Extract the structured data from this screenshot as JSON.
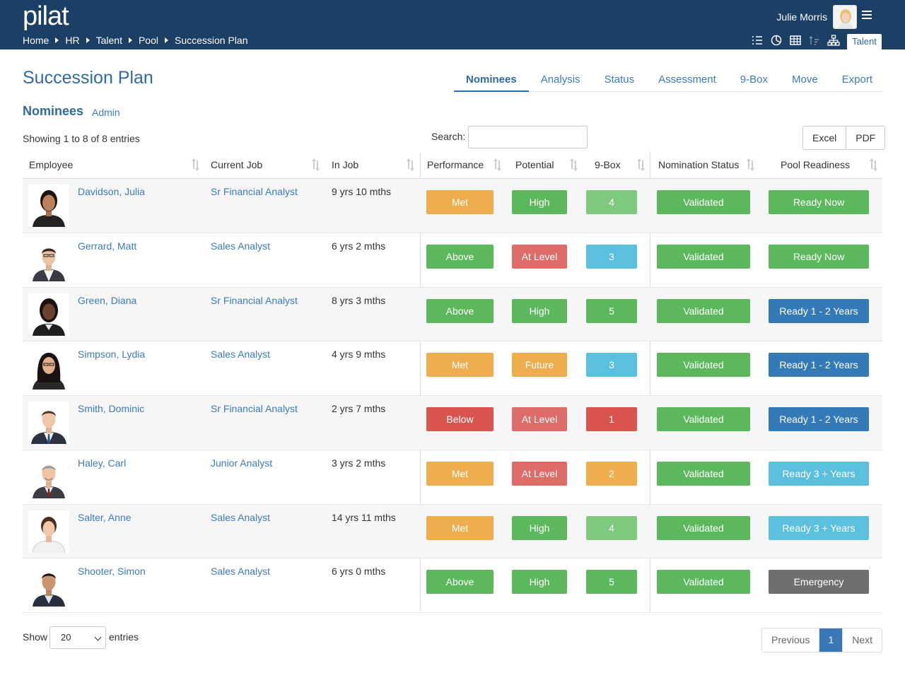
{
  "header": {
    "logo": "pilat",
    "breadcrumb": [
      "Home",
      "HR",
      "Talent",
      "Pool",
      "Succession Plan"
    ],
    "user_name": "Julie Morris",
    "talent_tab": "Talent"
  },
  "page": {
    "title": "Succession Plan",
    "tabs": [
      "Nominees",
      "Analysis",
      "Status",
      "Assessment",
      "9-Box",
      "Move",
      "Export"
    ],
    "active_tab": "Nominees",
    "section_title": "Nominees",
    "section_sub": "Admin",
    "showing": "Showing 1 to 8 of 8 entries",
    "search_label": "Search:",
    "search_value": "",
    "export_excel": "Excel",
    "export_pdf": "PDF"
  },
  "table": {
    "columns": [
      "Employee",
      "Current Job",
      "In Job",
      "Performance",
      "Potential",
      "9-Box",
      "Nomination Status",
      "Pool Readiness"
    ],
    "rows": [
      {
        "name": "Davidson, Julia",
        "job": "Sr Financial Analyst",
        "in_job": "9 yrs 10 mths",
        "performance": "Met",
        "potential": "High",
        "box": "4",
        "nomination": "Validated",
        "pool": "Ready Now"
      },
      {
        "name": "Gerrard, Matt",
        "job": "Sales Analyst",
        "in_job": "6 yrs 2 mths",
        "performance": "Above",
        "potential": "At Level",
        "box": "3",
        "nomination": "Validated",
        "pool": "Ready Now"
      },
      {
        "name": "Green, Diana",
        "job": "Sr Financial Analyst",
        "in_job": "8 yrs 3 mths",
        "performance": "Above",
        "potential": "High",
        "box": "5",
        "nomination": "Validated",
        "pool": "Ready 1 - 2 Years"
      },
      {
        "name": "Simpson, Lydia",
        "job": "Sales Analyst",
        "in_job": "4 yrs 9 mths",
        "performance": "Met",
        "potential": "Future",
        "box": "3",
        "nomination": "Validated",
        "pool": "Ready 1 - 2 Years"
      },
      {
        "name": "Smith, Dominic",
        "job": "Sr Financial Analyst",
        "in_job": "2 yrs 7 mths",
        "performance": "Below",
        "potential": "At Level",
        "box": "1",
        "nomination": "Validated",
        "pool": "Ready 1 - 2 Years"
      },
      {
        "name": "Haley, Carl",
        "job": "Junior Analyst",
        "in_job": "3 yrs 2 mths",
        "performance": "Met",
        "potential": "At Level",
        "box": "2",
        "nomination": "Validated",
        "pool": "Ready 3 + Years"
      },
      {
        "name": "Salter, Anne",
        "job": "Sales Analyst",
        "in_job": "14 yrs 11 mths",
        "performance": "Met",
        "potential": "High",
        "box": "4",
        "nomination": "Validated",
        "pool": "Ready 3 + Years"
      },
      {
        "name": "Shooter, Simon",
        "job": "Sales Analyst",
        "in_job": "6 yrs 0 mths",
        "performance": "Above",
        "potential": "High",
        "box": "5",
        "nomination": "Validated",
        "pool": "Emergency"
      }
    ]
  },
  "colors": {
    "header_bg": "#1c3f66",
    "link": "#3c7bbd",
    "green": "#5cb85c",
    "light_green": "#7fc97f",
    "orange": "#f0ad4e",
    "red": "#d9534f",
    "salmon": "#e06c6a",
    "cyan": "#5bc0de",
    "blue": "#337ab7",
    "gray": "#6f6f6f"
  },
  "footer": {
    "show_label": "Show",
    "page_size": "20",
    "entries_label": "entries",
    "previous": "Previous",
    "current_page": "1",
    "next": "Next"
  }
}
